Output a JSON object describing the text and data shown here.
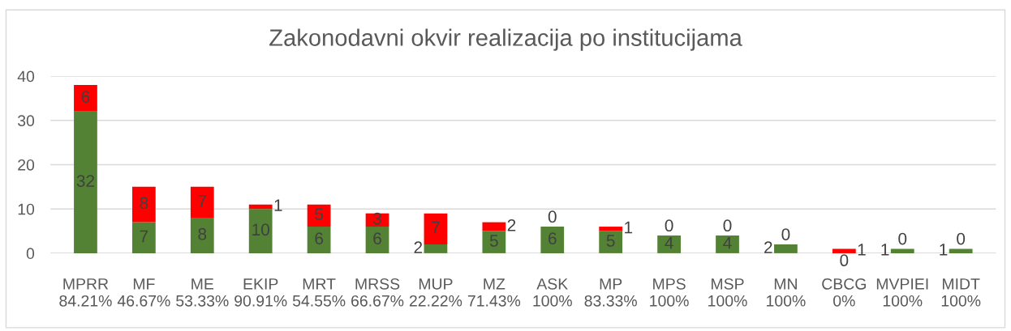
{
  "chart_data": {
    "type": "bar",
    "title": "Zakonodavni okvir realizacija po institucijama",
    "categories": [
      "MPRR\n84.21%",
      "MF\n46.67%",
      "ME\n53.33%",
      "EKIP\n90.91%",
      "MRT\n54.55%",
      "MRSS\n66.67%",
      "MUP\n22.22%",
      "MZ\n71.43%",
      "ASK\n100%",
      "MP\n83.33%",
      "MPS\n100%",
      "MSP\n100%",
      "MN\n100%",
      "CBCG\n0%",
      "MVPIEI\n100%",
      "MIDT\n100%"
    ],
    "stacked": true,
    "series": [
      {
        "color": "#548235",
        "values": [
          32,
          7,
          8,
          10,
          6,
          6,
          2,
          5,
          6,
          5,
          4,
          4,
          2,
          0,
          1,
          1
        ]
      },
      {
        "color": "#ff0000",
        "values": [
          6,
          8,
          7,
          1,
          5,
          3,
          7,
          2,
          0,
          1,
          0,
          0,
          0,
          1,
          0,
          0
        ]
      }
    ],
    "ylim": [
      0,
      40
    ],
    "yticks": [
      0,
      10,
      20,
      30,
      40
    ],
    "grid": "y",
    "data_labels": true,
    "legend": false
  }
}
